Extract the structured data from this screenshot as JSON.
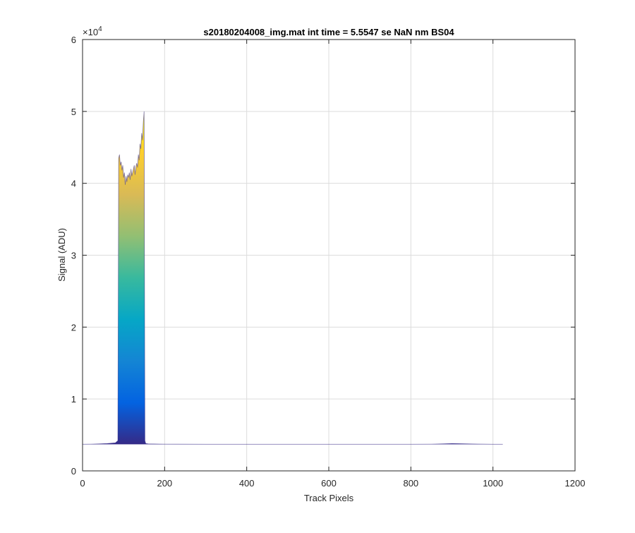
{
  "chart_data": {
    "type": "area",
    "title": "s20180204008_img.mat int time = 5.5547 se  NaN nm BS04",
    "xlabel": "Track Pixels",
    "ylabel": "Signal (ADU)",
    "xlim": [
      0,
      1200
    ],
    "ylim": [
      0,
      60000
    ],
    "x_ticks": [
      0,
      200,
      400,
      600,
      800,
      1000,
      1200
    ],
    "y_ticks": [
      0,
      10000,
      20000,
      30000,
      40000,
      50000,
      60000
    ],
    "x_tick_labels": [
      "0",
      "200",
      "400",
      "600",
      "800",
      "1000",
      "1200"
    ],
    "y_tick_labels": [
      "0",
      "1",
      "2",
      "3",
      "4",
      "5",
      "6"
    ],
    "y_exponent_label": "×10",
    "y_exponent_power": "4",
    "grid": true,
    "colormap": [
      "#352a87",
      "#0363e1",
      "#1485d4",
      "#06a7c6",
      "#38b99e",
      "#92bf73",
      "#d9ba56",
      "#fcce2e",
      "#f9fb0e"
    ],
    "series": [
      {
        "x": [
          0,
          20,
          40,
          60,
          80,
          86,
          88,
          90,
          92,
          94,
          96,
          98,
          100,
          102,
          104,
          106,
          108,
          110,
          112,
          114,
          116,
          118,
          120,
          122,
          124,
          126,
          128,
          130,
          132,
          134,
          136,
          138,
          140,
          142,
          144,
          146,
          148,
          150,
          152,
          154,
          160,
          200,
          300,
          400,
          500,
          600,
          700,
          800,
          850,
          880,
          900,
          920,
          950,
          1000,
          1024
        ],
        "y": [
          3700,
          3720,
          3750,
          3800,
          3900,
          4200,
          43500,
          44000,
          42500,
          43000,
          41800,
          42500,
          40800,
          41500,
          39800,
          41000,
          40200,
          41200,
          40800,
          41500,
          40500,
          42000,
          41000,
          41500,
          42000,
          42500,
          41200,
          42300,
          42800,
          42200,
          44000,
          43200,
          45500,
          44800,
          47000,
          46000,
          48500,
          50000,
          4200,
          3800,
          3750,
          3720,
          3700,
          3700,
          3700,
          3700,
          3700,
          3700,
          3720,
          3760,
          3800,
          3780,
          3740,
          3700,
          3700
        ]
      }
    ]
  }
}
